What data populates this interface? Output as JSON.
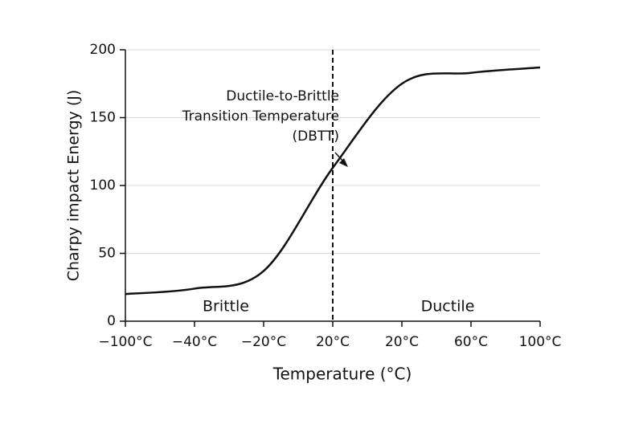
{
  "chart_data": {
    "type": "line",
    "x_label": "Temperature (°C)",
    "y_label": "Charpy impact Energy (J)",
    "categories": [
      "−100°C",
      "−40°C",
      "−20°C",
      "20°C",
      "20°C",
      "60°C",
      "100°C"
    ],
    "series": [
      {
        "name": "Charpy impact Energy",
        "color": "#111111",
        "values": [
          20,
          24,
          37,
          113,
          175,
          183,
          187
        ]
      }
    ],
    "ylim": [
      0,
      200
    ],
    "yticks": [
      0,
      50,
      100,
      150,
      200
    ],
    "grid": true,
    "annotation": [
      "Ductile-to-Brittle",
      "Transition Temperature",
      "(DBTT)"
    ],
    "regions": [
      "Brittle",
      "Ductile"
    ]
  }
}
